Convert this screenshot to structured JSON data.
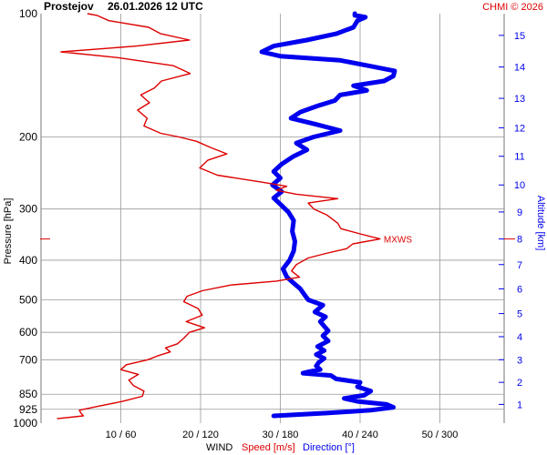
{
  "header": {
    "station": "Prostejov",
    "datetime": "26.01.2026 12 UTC",
    "copyright": "CHMI © 2026"
  },
  "footer": {
    "wind": "WIND",
    "speed_label": "Speed [m/s]",
    "direction_label": "Direction [°]"
  },
  "colors": {
    "speed": "#dd0000",
    "direction": "#0000ee",
    "grid": "#999999",
    "text": "#000000"
  },
  "chart_data": {
    "type": "line",
    "ylabel_left": "Pressure [hPa]",
    "ylabel_right": "Altitude [km]",
    "y_scale": "log-pressure",
    "ylim_hpa": [
      1000,
      100
    ],
    "xlim_speed_ms": [
      0,
      60
    ],
    "xlim_direction_deg": [
      0,
      360
    ],
    "x_ticks": [
      "10 / 60",
      "20 / 120",
      "30 / 180",
      "40 / 240",
      "50 / 300"
    ],
    "x_tick_speed": [
      10,
      20,
      30,
      40,
      50
    ],
    "pressure_ticks": [
      "100",
      "200",
      "300",
      "400",
      "500",
      "600",
      "700",
      "850",
      "925",
      "1000"
    ],
    "pressure_tick_values": [
      100,
      200,
      300,
      400,
      500,
      600,
      700,
      850,
      925,
      1000
    ],
    "altitude_ticks": [
      "1",
      "2",
      "3",
      "4",
      "5",
      "6",
      "7",
      "8",
      "9",
      "10",
      "11",
      "12",
      "13",
      "14",
      "15"
    ],
    "altitude_tick_pressures": [
      900,
      795,
      700,
      615,
      540,
      470,
      410,
      355,
      305,
      262,
      223,
      190,
      161,
      135,
      113
    ],
    "annotation": {
      "text": "MXWS",
      "pressure": 355,
      "speed": 42.5
    },
    "series": [
      {
        "name": "Speed [m/s]",
        "unit": "m/s",
        "points": [
          [
            975,
            2.0
          ],
          [
            960,
            5.3
          ],
          [
            945,
            5.0
          ],
          [
            930,
            4.8
          ],
          [
            910,
            7.1
          ],
          [
            885,
            10.2
          ],
          [
            860,
            12.7
          ],
          [
            835,
            12.9
          ],
          [
            810,
            11.6
          ],
          [
            785,
            11.0
          ],
          [
            760,
            12.2
          ],
          [
            740,
            10.0
          ],
          [
            720,
            10.7
          ],
          [
            700,
            13.4
          ],
          [
            685,
            14.6
          ],
          [
            670,
            16.2
          ],
          [
            655,
            15.6
          ],
          [
            640,
            17.1
          ],
          [
            620,
            17.9
          ],
          [
            600,
            18.6
          ],
          [
            585,
            20.5
          ],
          [
            565,
            18.2
          ],
          [
            545,
            20.2
          ],
          [
            525,
            19.7
          ],
          [
            505,
            17.9
          ],
          [
            490,
            18.3
          ],
          [
            475,
            20.2
          ],
          [
            460,
            23.8
          ],
          [
            450,
            29.5
          ],
          [
            440,
            32.4
          ],
          [
            425,
            31.4
          ],
          [
            410,
            32.0
          ],
          [
            395,
            33.5
          ],
          [
            385,
            35.7
          ],
          [
            375,
            38.3
          ],
          [
            365,
            39.1
          ],
          [
            355,
            42.5
          ],
          [
            345,
            40.0
          ],
          [
            335,
            37.6
          ],
          [
            325,
            37.2
          ],
          [
            310,
            35.8
          ],
          [
            300,
            34.2
          ],
          [
            290,
            33.5
          ],
          [
            283,
            37.2
          ],
          [
            276,
            32.0
          ],
          [
            270,
            29.5
          ],
          [
            264,
            30.8
          ],
          [
            258,
            27.7
          ],
          [
            248,
            22.1
          ],
          [
            238,
            19.9
          ],
          [
            228,
            20.9
          ],
          [
            220,
            23.3
          ],
          [
            212,
            21.2
          ],
          [
            205,
            19.5
          ],
          [
            200,
            17.3
          ],
          [
            196,
            15.0
          ],
          [
            188,
            12.9
          ],
          [
            180,
            13.3
          ],
          [
            172,
            12.1
          ],
          [
            165,
            13.6
          ],
          [
            158,
            12.5
          ],
          [
            152,
            14.2
          ],
          [
            146,
            15.1
          ],
          [
            140,
            18.7
          ],
          [
            134,
            16.6
          ],
          [
            128,
            9.5
          ],
          [
            124,
            2.5
          ],
          [
            120,
            12.0
          ],
          [
            116,
            18.6
          ],
          [
            112,
            15.0
          ],
          [
            108,
            13.5
          ],
          [
            104,
            8.5
          ],
          [
            101,
            7.0
          ],
          [
            100,
            5.8
          ]
        ]
      },
      {
        "name": "Direction [°]",
        "unit": "deg",
        "points": [
          [
            960,
            175
          ],
          [
            945,
            215
          ],
          [
            930,
            248
          ],
          [
            915,
            265
          ],
          [
            900,
            260
          ],
          [
            885,
            238
          ],
          [
            870,
            228
          ],
          [
            855,
            243
          ],
          [
            835,
            248
          ],
          [
            815,
            238
          ],
          [
            795,
            240
          ],
          [
            780,
            222
          ],
          [
            765,
            218
          ],
          [
            755,
            197
          ],
          [
            748,
            202
          ],
          [
            740,
            210
          ],
          [
            725,
            207
          ],
          [
            710,
            209
          ],
          [
            695,
            213
          ],
          [
            680,
            207
          ],
          [
            665,
            213
          ],
          [
            650,
            208
          ],
          [
            630,
            216
          ],
          [
            612,
            212
          ],
          [
            595,
            216
          ],
          [
            580,
            213
          ],
          [
            565,
            210
          ],
          [
            550,
            214
          ],
          [
            535,
            206
          ],
          [
            515,
            212
          ],
          [
            500,
            201
          ],
          [
            485,
            198
          ],
          [
            470,
            195
          ],
          [
            455,
            190
          ],
          [
            440,
            185
          ],
          [
            420,
            182
          ],
          [
            400,
            187
          ],
          [
            380,
            190
          ],
          [
            360,
            191
          ],
          [
            340,
            189
          ],
          [
            320,
            190
          ],
          [
            305,
            186
          ],
          [
            292,
            180
          ],
          [
            282,
            175
          ],
          [
            272,
            181
          ],
          [
            262,
            174
          ],
          [
            252,
            180
          ],
          [
            243,
            175
          ],
          [
            233,
            181
          ],
          [
            223,
            190
          ],
          [
            215,
            200
          ],
          [
            207,
            192
          ],
          [
            200,
            205
          ],
          [
            193,
            225
          ],
          [
            186,
            206
          ],
          [
            180,
            188
          ],
          [
            174,
            195
          ],
          [
            168,
            208
          ],
          [
            163,
            221
          ],
          [
            158,
            225
          ],
          [
            154,
            245
          ],
          [
            150,
            235
          ],
          [
            146,
            258
          ],
          [
            142,
            265
          ],
          [
            138,
            266
          ],
          [
            134,
            246
          ],
          [
            130,
            225
          ],
          [
            127,
            180
          ],
          [
            124,
            166
          ],
          [
            120,
            175
          ],
          [
            116,
            200
          ],
          [
            112,
            222
          ],
          [
            108,
            235
          ],
          [
            104,
            238
          ],
          [
            102,
            244
          ],
          [
            101,
            236
          ],
          [
            100,
            236
          ]
        ]
      }
    ]
  }
}
